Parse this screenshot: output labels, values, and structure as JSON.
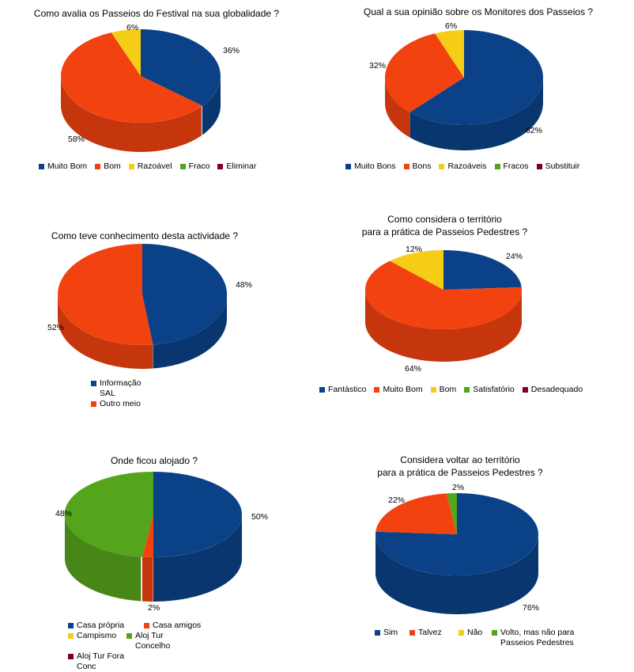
{
  "colors": {
    "dark_blue": "#0b4287",
    "orange": "#f2420f",
    "yellow": "#f5cd17",
    "green": "#55a51c",
    "maroon": "#7e0021"
  },
  "chart_data": [
    {
      "type": "pie",
      "title": "Como avalia os Passeios do Festival na sua globalidade ?",
      "categories": [
        "Muito Bom",
        "Bom",
        "Razoável",
        "Fraco",
        "Eliminar"
      ],
      "values": [
        36,
        58,
        6,
        0,
        0
      ],
      "labels": [
        "36%",
        "58%",
        "6%",
        "",
        ""
      ]
    },
    {
      "type": "pie",
      "title": "Qual a sua opinião sobre os Monitores dos Passeios ?",
      "categories": [
        "Muito Bons",
        "Bons",
        "Razoáveis",
        "Fracos",
        "Substituir"
      ],
      "values": [
        62,
        32,
        6,
        0,
        0
      ],
      "labels": [
        "62%",
        "32%",
        "6%",
        "",
        ""
      ]
    },
    {
      "type": "pie",
      "title": "Como teve conhecimento desta actividade ?",
      "categories": [
        "Informação SAL",
        "Outro meio"
      ],
      "values": [
        48,
        52
      ],
      "labels": [
        "48%",
        "52%"
      ]
    },
    {
      "type": "pie",
      "title": "Como considera o território\npara a prática de Passeios Pedestres ?",
      "categories": [
        "Fantástico",
        "Muito Bom",
        "Bom",
        "Satisfatório",
        "Desadequado"
      ],
      "values": [
        24,
        64,
        12,
        0,
        0
      ],
      "labels": [
        "24%",
        "64%",
        "12%",
        "",
        ""
      ]
    },
    {
      "type": "pie",
      "title": "Onde ficou alojado ?",
      "categories": [
        "Casa própria",
        "Casa amigos",
        "Campismo",
        "Aloj Tur Concelho",
        "Aloj Tur Fora Conc"
      ],
      "values": [
        50,
        2,
        0,
        48,
        0
      ],
      "labels": [
        "50%",
        "2%",
        "",
        "48%",
        ""
      ]
    },
    {
      "type": "pie",
      "title": "Considera voltar ao território\npara a prática de Passeios Pedestres ?",
      "categories": [
        "Sim",
        "Talvez",
        "Não",
        "Volto, mas não para Passeios Pedestres"
      ],
      "values": [
        76,
        22,
        0,
        2
      ],
      "labels": [
        "76%",
        "22%",
        "",
        "2%"
      ]
    }
  ]
}
